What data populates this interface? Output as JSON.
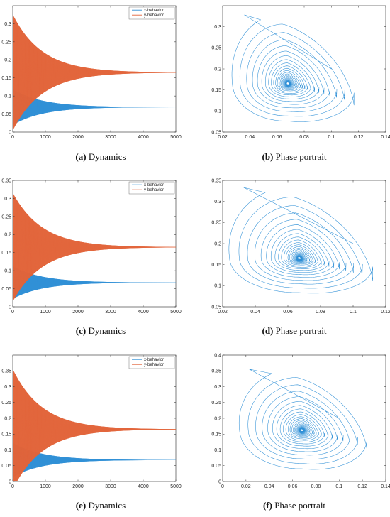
{
  "colors": {
    "x_series": "#2e8fd6",
    "y_series": "#e2643a",
    "axis": "#262626"
  },
  "chart_data": [
    {
      "id": "a",
      "type": "line",
      "label": "(a)",
      "caption": "Dynamics",
      "xlim": [
        0,
        5000
      ],
      "ylim": [
        0,
        0.35
      ],
      "xticks": [
        0,
        1000,
        2000,
        3000,
        4000,
        5000
      ],
      "yticks": [
        0,
        0.05,
        0.1,
        0.15,
        0.2,
        0.25,
        0.3
      ],
      "legend": "top-right",
      "grid": false,
      "series": [
        {
          "name": "x-behavior",
          "equilibrium": 0.069,
          "initial_amplitude": 0.055,
          "color": "#2e8fd6"
        },
        {
          "name": "y-behavior",
          "equilibrium": 0.165,
          "initial_amplitude": 0.16,
          "color": "#e2643a"
        }
      ]
    },
    {
      "id": "b",
      "type": "line",
      "label": "(b)",
      "caption": "Phase portrait",
      "xlim": [
        0.02,
        0.14
      ],
      "ylim": [
        0.05,
        0.35
      ],
      "xticks": [
        0.02,
        0.04,
        0.06,
        0.08,
        0.1,
        0.12,
        0.14
      ],
      "yticks": [
        0.05,
        0.1,
        0.15,
        0.2,
        0.25,
        0.3
      ],
      "grid": false,
      "start": [
        0.1,
        0.2
      ],
      "first_min_x": 0.026,
      "first_max_y": 0.328,
      "max_x": 0.122,
      "min_y": 0.07,
      "center": [
        0.068,
        0.165
      ]
    },
    {
      "id": "c",
      "type": "line",
      "label": "(c)",
      "caption": "Dynamics",
      "xlim": [
        0,
        5000
      ],
      "ylim": [
        0,
        0.35
      ],
      "xticks": [
        0,
        1000,
        2000,
        3000,
        4000,
        5000
      ],
      "yticks": [
        0,
        0.05,
        0.1,
        0.15,
        0.2,
        0.25,
        0.3,
        0.35
      ],
      "legend": "top-right",
      "grid": false,
      "series": [
        {
          "name": "x-behavior",
          "equilibrium": 0.067,
          "initial_amplitude": 0.05,
          "color": "#2e8fd6"
        },
        {
          "name": "y-behavior",
          "equilibrium": 0.165,
          "initial_amplitude": 0.15,
          "color": "#e2643a"
        }
      ]
    },
    {
      "id": "d",
      "type": "line",
      "label": "(d)",
      "caption": "Phase portrait",
      "xlim": [
        0.02,
        0.12
      ],
      "ylim": [
        0.05,
        0.35
      ],
      "xticks": [
        0.02,
        0.04,
        0.06,
        0.08,
        0.1,
        0.12
      ],
      "yticks": [
        0.05,
        0.1,
        0.15,
        0.2,
        0.25,
        0.3,
        0.35
      ],
      "grid": false,
      "start": [
        0.1,
        0.2
      ],
      "first_min_x": 0.023,
      "first_max_y": 0.333,
      "max_x": 0.117,
      "min_y": 0.078,
      "center": [
        0.067,
        0.165
      ]
    },
    {
      "id": "e",
      "type": "line",
      "label": "(e)",
      "caption": "Dynamics",
      "xlim": [
        0,
        5000
      ],
      "ylim": [
        0,
        0.4
      ],
      "xticks": [
        0,
        1000,
        2000,
        3000,
        4000,
        5000
      ],
      "yticks": [
        0,
        0.05,
        0.1,
        0.15,
        0.2,
        0.25,
        0.3,
        0.35
      ],
      "legend": "top-right",
      "grid": false,
      "series": [
        {
          "name": "x-behavior",
          "equilibrium": 0.068,
          "initial_amplitude": 0.06,
          "color": "#2e8fd6"
        },
        {
          "name": "y-behavior",
          "equilibrium": 0.165,
          "initial_amplitude": 0.19,
          "color": "#e2643a"
        }
      ]
    },
    {
      "id": "f",
      "type": "line",
      "label": "(f)",
      "caption": "Phase portrait",
      "xlim": [
        0,
        0.14
      ],
      "ylim": [
        0,
        0.4
      ],
      "xticks": [
        0,
        0.02,
        0.04,
        0.06,
        0.08,
        0.1,
        0.12,
        0.14
      ],
      "yticks": [
        0,
        0.05,
        0.1,
        0.15,
        0.2,
        0.25,
        0.3,
        0.35,
        0.4
      ],
      "grid": false,
      "start": [
        0.1,
        0.2
      ],
      "first_min_x": 0.013,
      "first_max_y": 0.355,
      "max_x": 0.13,
      "min_y": 0.032,
      "center": [
        0.068,
        0.162
      ]
    }
  ]
}
